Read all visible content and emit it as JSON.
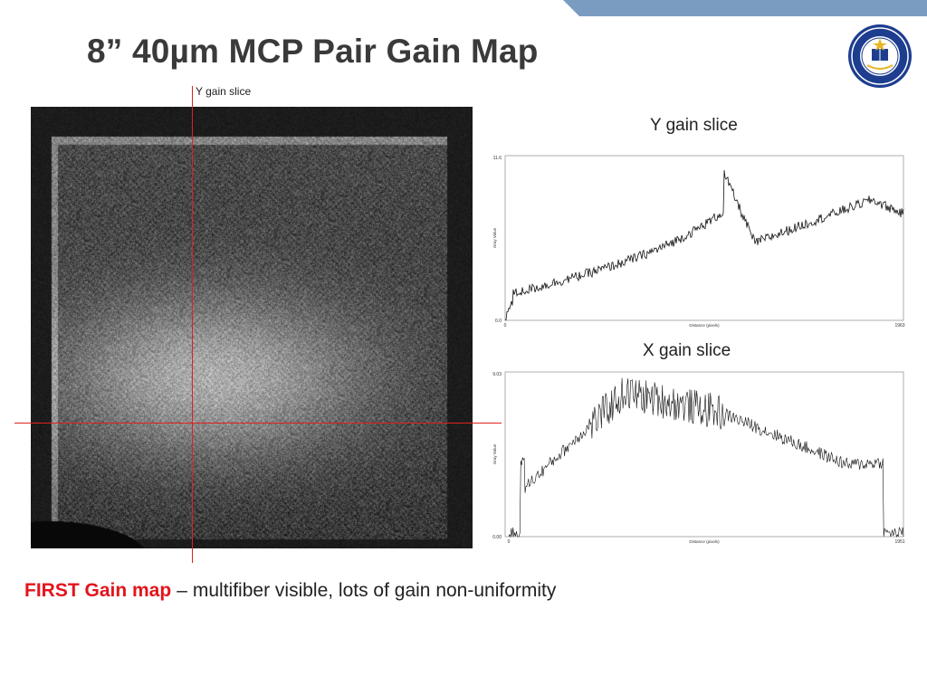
{
  "slide": {
    "title": "8” 40µm MCP Pair Gain Map"
  },
  "gain_map": {
    "crosshair_label": "Y gain slice"
  },
  "y_slice": {
    "title": "Y gain slice",
    "y_top_tick": "11.6",
    "y_bottom_tick": "0.0",
    "x_left_tick": "0",
    "x_right_tick": "1963",
    "xlabel": "Distance (pixels)",
    "ylabel": "Gray Value"
  },
  "x_slice": {
    "title": "X gain slice",
    "y_top_tick": "9.03",
    "y_bottom_tick": "0.00",
    "x_left_tick": "0",
    "x_right_tick": "1951",
    "xlabel": "Distance (pixels)",
    "ylabel": "Gray Value"
  },
  "caption": {
    "lead": "FIRST Gain map",
    "dash": "–",
    "text": "multifiber visible, lots of gain non-uniformity"
  },
  "colors": {
    "banner": "#7a9cc0",
    "crosshair": "#e02020",
    "caption_lead": "#e3141d",
    "seal_blue": "#1d3d8f",
    "seal_gold": "#e8b623"
  }
}
